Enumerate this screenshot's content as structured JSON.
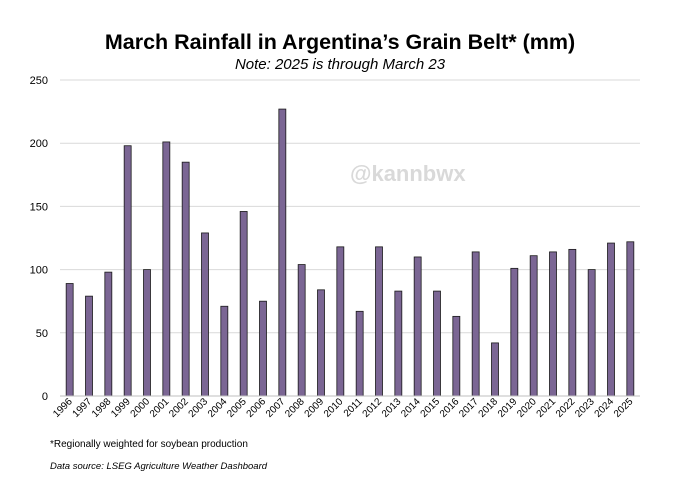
{
  "chart_data": {
    "type": "bar",
    "title": "March Rainfall in Argentina’s Grain Belt* (mm)",
    "subtitle": "Note: 2025 is through March 23",
    "xlabel": "",
    "ylabel": "",
    "ylim": [
      0,
      250
    ],
    "yticks": [
      0,
      50,
      100,
      150,
      200,
      250
    ],
    "grid": true,
    "legend": "none",
    "bar_color": "#7b6694",
    "bar_edge_color": "#1a1a1a",
    "categories": [
      "1996",
      "1997",
      "1998",
      "1999",
      "2000",
      "2001",
      "2002",
      "2003",
      "2004",
      "2005",
      "2006",
      "2007",
      "2008",
      "2009",
      "2010",
      "2011",
      "2012",
      "2013",
      "2014",
      "2015",
      "2016",
      "2017",
      "2018",
      "2019",
      "2020",
      "2021",
      "2022",
      "2023",
      "2024",
      "2025"
    ],
    "values": [
      89,
      79,
      98,
      198,
      100,
      201,
      185,
      129,
      71,
      146,
      75,
      227,
      104,
      84,
      118,
      67,
      118,
      83,
      110,
      83,
      63,
      114,
      42,
      101,
      111,
      114,
      116,
      100,
      121,
      122
    ]
  },
  "watermark": "@kannbwx",
  "footnote": "*Regionally weighted for soybean production",
  "source": "Data source: LSEG Agriculture Weather Dashboard"
}
